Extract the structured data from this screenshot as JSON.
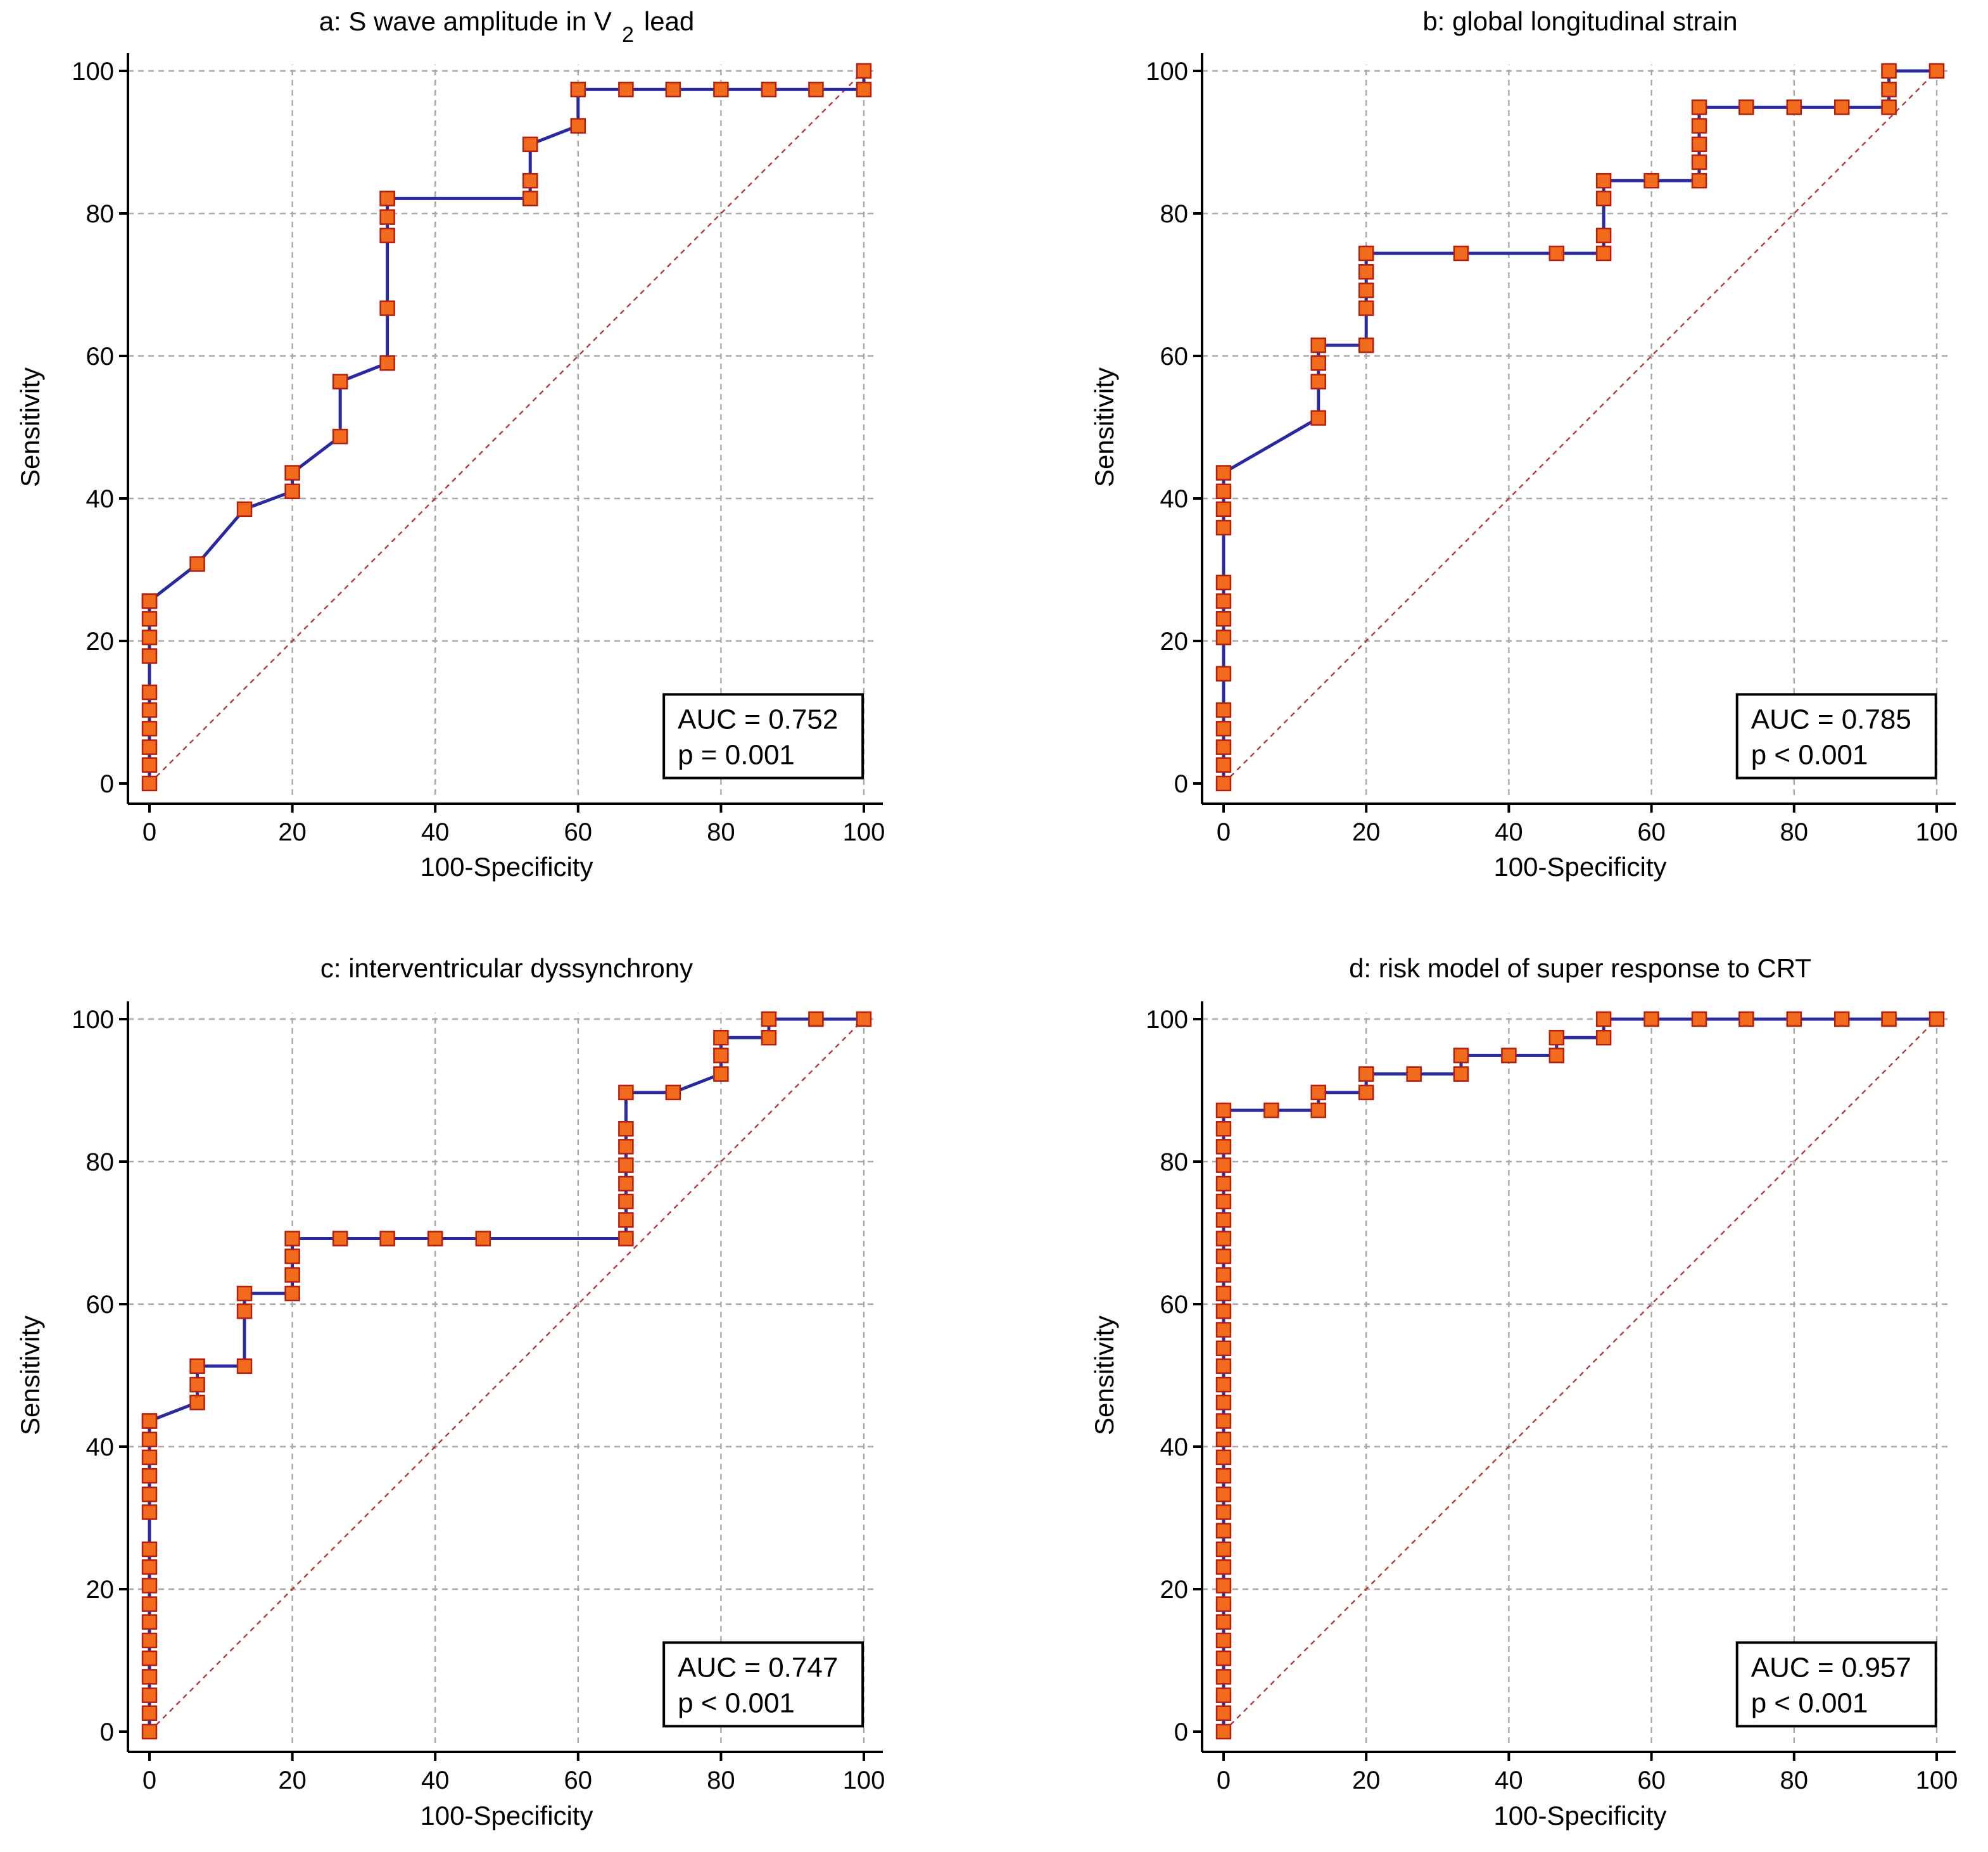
{
  "figure": {
    "xlabel": "100-Specificity",
    "ylabel": "Sensitivity"
  },
  "colors": {
    "roc_line": "#2a2aa0",
    "marker_fill": "#f26a1b",
    "marker_edge": "#b3200f",
    "diagonal": "#b23a3a",
    "grid": "#a8a8a8"
  },
  "chart_data": [
    {
      "type": "line",
      "title": "a: S wave amplitude in V",
      "title_subscript": "2",
      "title_suffix": "lead",
      "xlabel": "100-Specificity",
      "ylabel": "Sensitivity",
      "xlim": [
        0,
        100
      ],
      "ylim": [
        0,
        100
      ],
      "xticks": [
        "0",
        "20",
        "40",
        "60",
        "80",
        "100"
      ],
      "yticks": [
        "0",
        "20",
        "40",
        "60",
        "80",
        "100"
      ],
      "grid": true,
      "reference_diagonal": true,
      "auc_label": "AUC = 0.752",
      "p_label": "p = 0.001",
      "legend_position": "bottom-right",
      "x": [
        0,
        0,
        0,
        0,
        0,
        0,
        0,
        0,
        0,
        0,
        0,
        0,
        6.7,
        13.3,
        20,
        20,
        26.7,
        26.7,
        33.3,
        33.3,
        33.3,
        33.3,
        33.3,
        33.3,
        53.3,
        53.3,
        53.3,
        60,
        60,
        66.7,
        73.3,
        80,
        86.7,
        93.3,
        100,
        100
      ],
      "y": [
        0,
        2.6,
        5.1,
        7.7,
        10.3,
        12.8,
        17.9,
        20.5,
        23.1,
        25.6,
        25.6,
        25.6,
        30.8,
        38.5,
        41,
        43.6,
        48.7,
        56.4,
        59,
        66.7,
        76.9,
        79.5,
        82.1,
        82.1,
        82.1,
        84.6,
        89.7,
        92.3,
        97.4,
        97.4,
        97.4,
        97.4,
        97.4,
        97.4,
        97.4,
        100
      ]
    },
    {
      "type": "line",
      "title": "b: global longitudinal strain",
      "xlabel": "100-Specificity",
      "ylabel": "Sensitivity",
      "xlim": [
        0,
        100
      ],
      "ylim": [
        0,
        100
      ],
      "xticks": [
        "0",
        "20",
        "40",
        "60",
        "80",
        "100"
      ],
      "yticks": [
        "0",
        "20",
        "40",
        "60",
        "80",
        "100"
      ],
      "grid": true,
      "reference_diagonal": true,
      "auc_label": "AUC = 0.785",
      "p_label": "p < 0.001",
      "legend_position": "bottom-right",
      "x": [
        0,
        0,
        0,
        0,
        0,
        0,
        0,
        0,
        0,
        0,
        0,
        0,
        0,
        0,
        13.3,
        13.3,
        13.3,
        13.3,
        20,
        20,
        20,
        20,
        20,
        33.3,
        46.7,
        53.3,
        53.3,
        53.3,
        53.3,
        60,
        66.7,
        66.7,
        66.7,
        66.7,
        66.7,
        73.3,
        80,
        86.7,
        93.3,
        93.3,
        93.3,
        100
      ],
      "y": [
        0,
        2.6,
        5.1,
        7.7,
        10.3,
        15.4,
        20.5,
        23.1,
        25.6,
        28.2,
        35.9,
        38.5,
        41,
        43.6,
        51.3,
        56.4,
        59,
        61.5,
        61.5,
        66.7,
        69.2,
        71.8,
        74.4,
        74.4,
        74.4,
        74.4,
        76.9,
        82.1,
        84.6,
        84.6,
        84.6,
        87.2,
        89.7,
        92.3,
        94.9,
        94.9,
        94.9,
        94.9,
        94.9,
        97.4,
        100,
        100
      ]
    },
    {
      "type": "line",
      "title": "c: interventricular dyssynchrony",
      "xlabel": "100-Specificity",
      "ylabel": "Sensitivity",
      "xlim": [
        0,
        100
      ],
      "ylim": [
        0,
        100
      ],
      "xticks": [
        "0",
        "20",
        "40",
        "60",
        "80",
        "100"
      ],
      "yticks": [
        "0",
        "20",
        "40",
        "60",
        "80",
        "100"
      ],
      "grid": true,
      "reference_diagonal": true,
      "auc_label": "AUC = 0.747",
      "p_label": "p < 0.001",
      "legend_position": "bottom-right",
      "x": [
        0,
        0,
        0,
        0,
        0,
        0,
        0,
        0,
        0,
        0,
        0,
        0,
        0,
        0,
        0,
        0,
        0,
        0,
        6.7,
        6.7,
        6.7,
        13.3,
        13.3,
        13.3,
        20,
        20,
        20,
        20,
        26.7,
        33.3,
        40,
        46.7,
        66.7,
        66.7,
        66.7,
        66.7,
        66.7,
        66.7,
        66.7,
        66.7,
        73.3,
        80,
        80,
        80,
        86.7,
        86.7,
        93.3,
        100
      ],
      "y": [
        0,
        2.6,
        5.1,
        7.7,
        10.3,
        12.8,
        15.4,
        17.9,
        20.5,
        23.1,
        25.6,
        30.8,
        33.3,
        35.9,
        38.5,
        41,
        43.6,
        43.6,
        46.2,
        48.7,
        51.3,
        51.3,
        59,
        61.5,
        61.5,
        64.1,
        66.7,
        69.2,
        69.2,
        69.2,
        69.2,
        69.2,
        69.2,
        71.8,
        74.4,
        76.9,
        79.5,
        82.1,
        84.6,
        89.7,
        89.7,
        92.3,
        94.9,
        97.4,
        97.4,
        100,
        100,
        100
      ]
    },
    {
      "type": "line",
      "title": "d: risk model of super response to CRT",
      "xlabel": "100-Specificity",
      "ylabel": "Sensitivity",
      "xlim": [
        0,
        100
      ],
      "ylim": [
        0,
        100
      ],
      "xticks": [
        "0",
        "20",
        "40",
        "60",
        "80",
        "100"
      ],
      "yticks": [
        "0",
        "20",
        "40",
        "60",
        "80",
        "100"
      ],
      "grid": true,
      "reference_diagonal": true,
      "auc_label": "AUC = 0.957",
      "p_label": "p < 0.001",
      "legend_position": "bottom-right",
      "x": [
        0,
        0,
        0,
        0,
        0,
        0,
        0,
        0,
        0,
        0,
        0,
        0,
        0,
        0,
        0,
        0,
        0,
        0,
        0,
        0,
        0,
        0,
        0,
        0,
        0,
        0,
        0,
        0,
        0,
        0,
        0,
        0,
        0,
        0,
        0,
        6.7,
        13.3,
        13.3,
        20,
        20,
        26.7,
        33.3,
        33.3,
        40,
        46.7,
        46.7,
        53.3,
        53.3,
        60,
        66.7,
        73.3,
        80,
        86.7,
        93.3,
        100
      ],
      "y": [
        0,
        2.6,
        5.1,
        7.7,
        10.3,
        12.8,
        15.4,
        17.9,
        20.5,
        23.1,
        25.6,
        28.2,
        30.8,
        33.3,
        35.9,
        38.5,
        41,
        43.6,
        46.2,
        48.7,
        51.3,
        53.8,
        56.4,
        59,
        61.5,
        64.1,
        66.7,
        69.2,
        71.8,
        74.4,
        76.9,
        79.5,
        82.1,
        84.6,
        87.2,
        87.2,
        87.2,
        89.7,
        89.7,
        92.3,
        92.3,
        92.3,
        94.9,
        94.9,
        94.9,
        97.4,
        97.4,
        100,
        100,
        100,
        100,
        100,
        100,
        100,
        100
      ]
    }
  ]
}
